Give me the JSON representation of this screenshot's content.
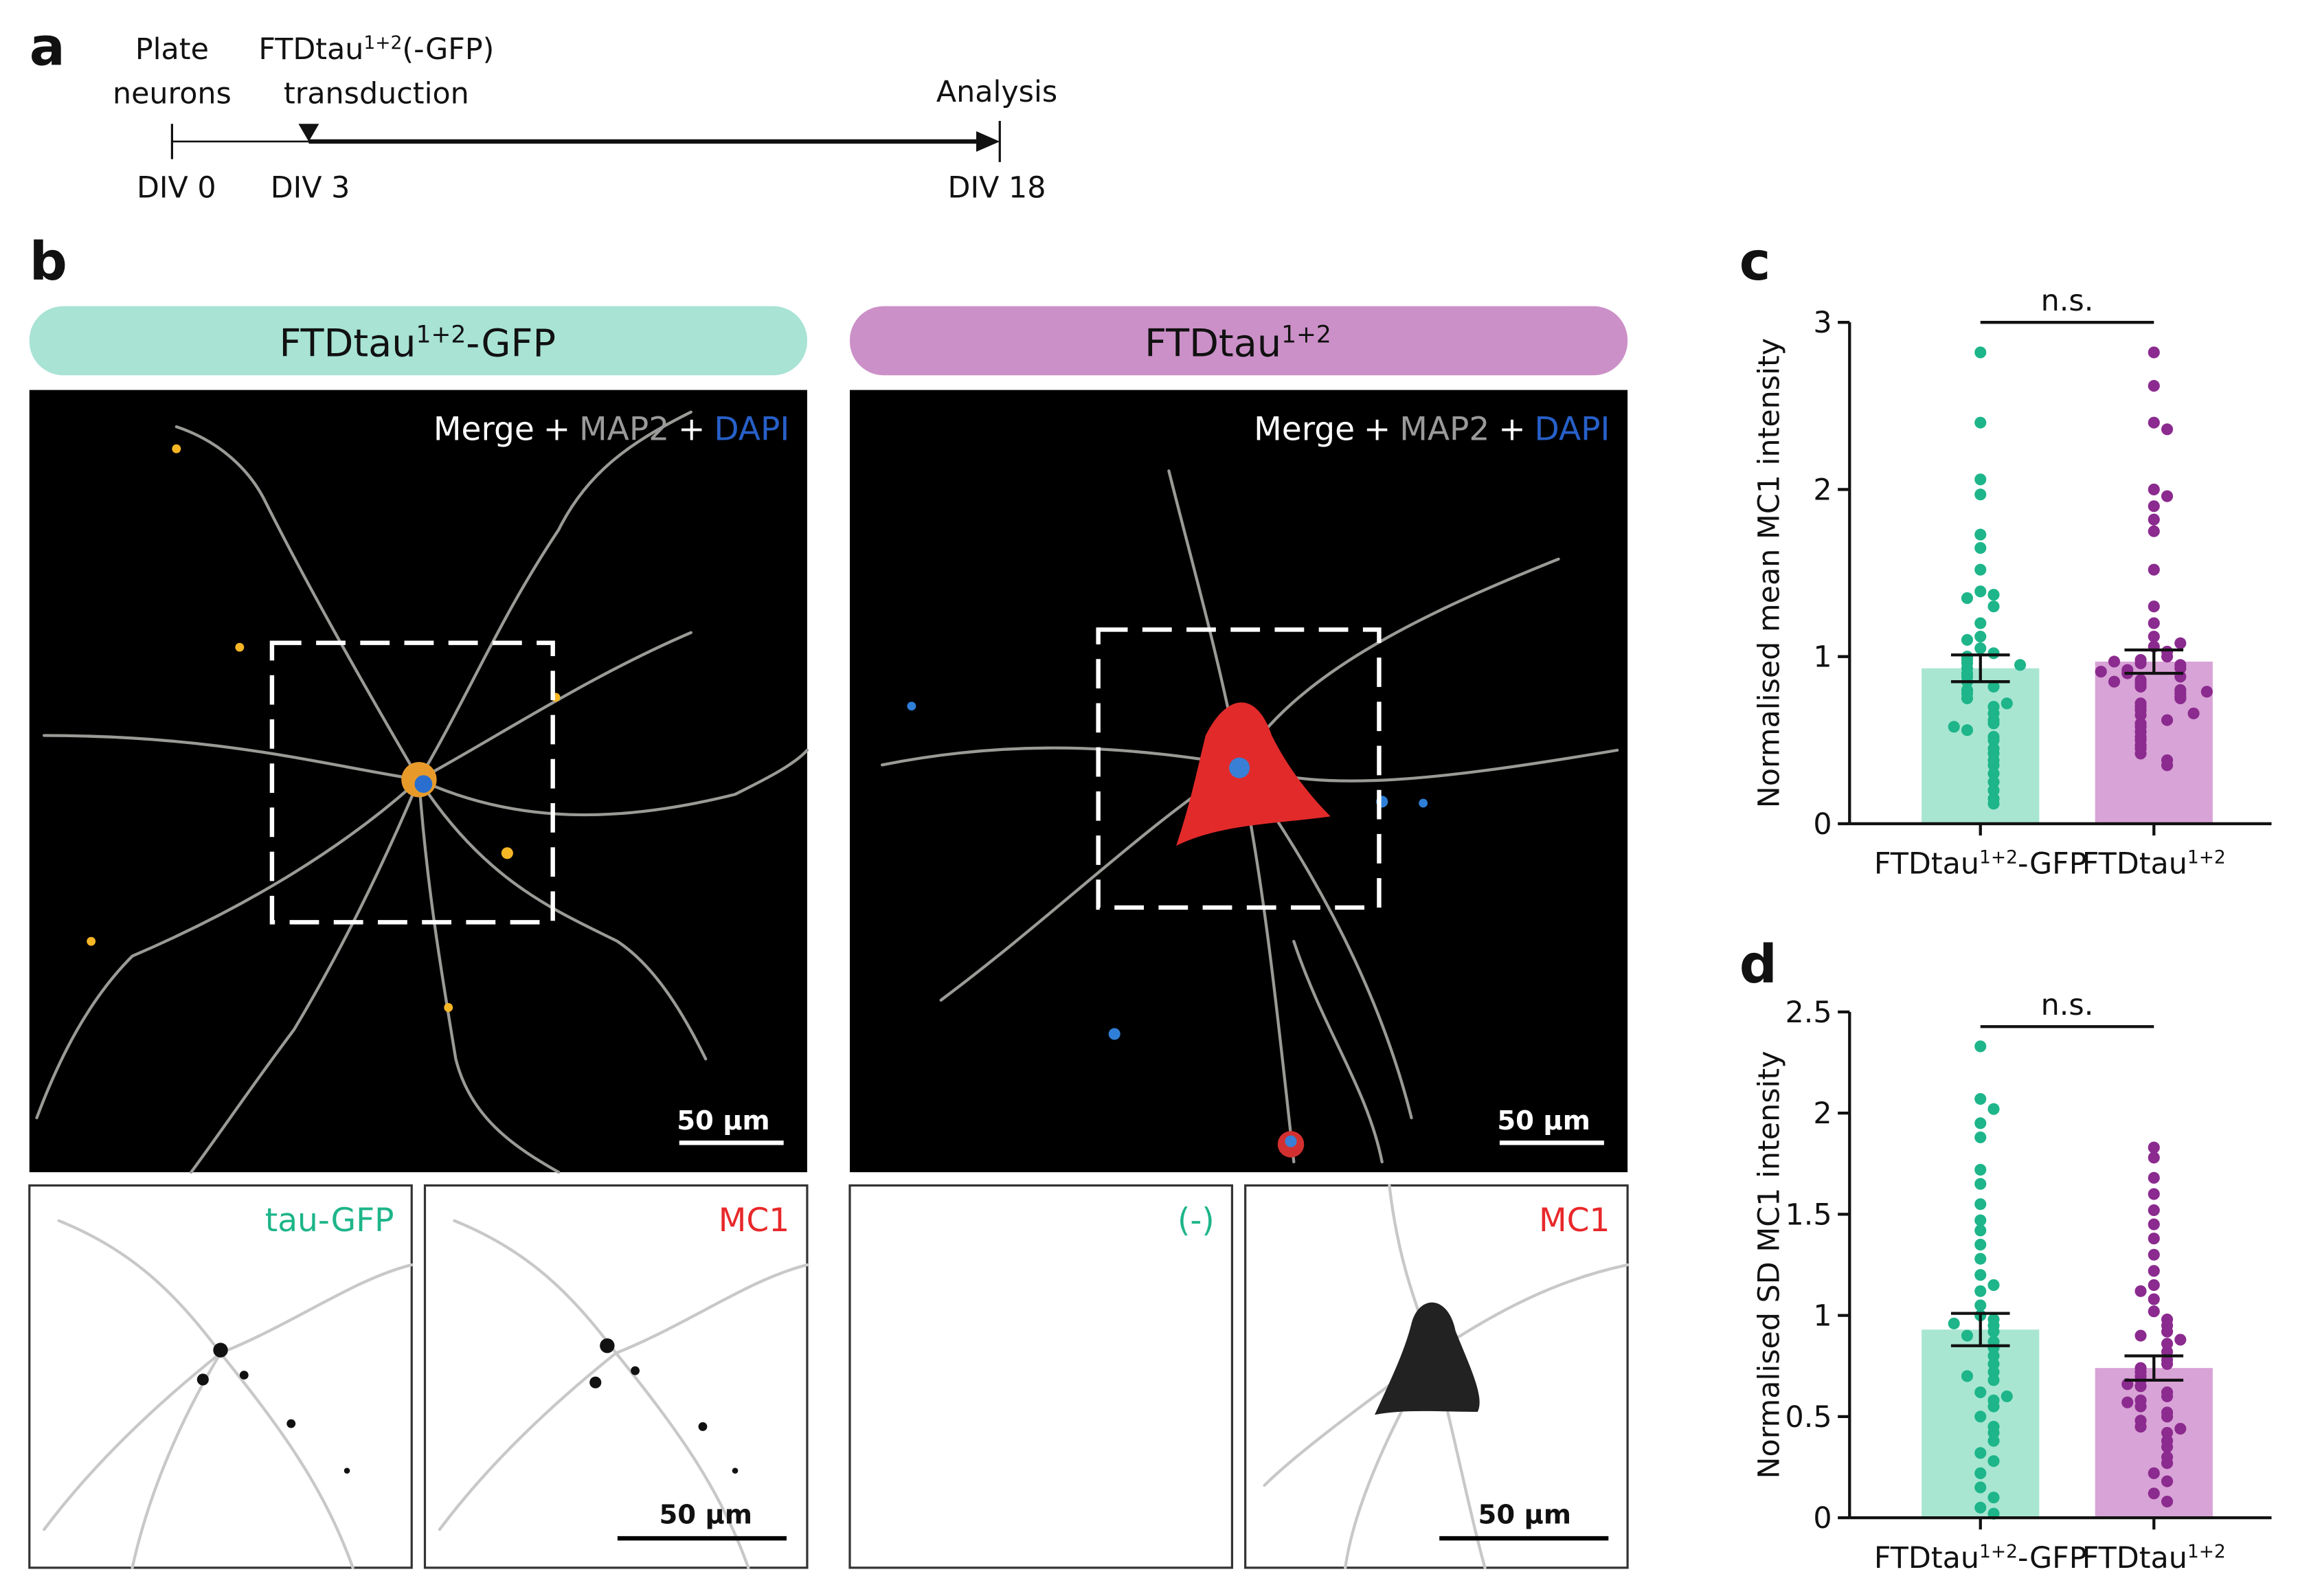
{
  "panel_labels": [
    "a",
    "b",
    "c",
    "d"
  ],
  "timeline": {
    "start_label": [
      "Plate",
      "neurons"
    ],
    "transduction_label": [
      "FTDtau",
      "1+2",
      "(-GFP)"
    ],
    "transduction_label_2": "transduction",
    "end_label": "Analysis",
    "days": [
      "DIV 0",
      "DIV 3",
      "DIV 18"
    ]
  },
  "conditions": [
    {
      "title": [
        "FTDtau",
        "1+2",
        "-GFP"
      ],
      "color": "#a8e3d4",
      "channels": [
        "tau-GFP",
        "MC1"
      ]
    },
    {
      "title": [
        "FTDtau",
        "1+2"
      ],
      "color": "#cc90c8",
      "channels": [
        "(-)",
        "MC1"
      ]
    }
  ],
  "merge_label": [
    "Merge",
    "+",
    "MAP2",
    "+",
    "DAPI"
  ],
  "scale_bar": "50 µm",
  "chart_data": [
    {
      "type": "bar",
      "ylabel": "Normalised mean MC1 intensity",
      "categories": [
        [
          "FTDtau",
          "1+2",
          "-GFP"
        ],
        [
          "FTDtau",
          "1+2"
        ]
      ],
      "values": [
        0.93,
        0.97
      ],
      "errors": [
        0.08,
        0.07
      ],
      "colors": [
        "#a8e6d2",
        "#d8a3d6"
      ],
      "point_colors": [
        "#1db589",
        "#8b2a8f"
      ],
      "points": [
        [
          2.82,
          2.4,
          2.06,
          1.97,
          1.73,
          1.65,
          1.52,
          1.39,
          1.37,
          1.35,
          1.3,
          1.2,
          1.12,
          1.05,
          1.02,
          1.0,
          0.98,
          0.96,
          0.93,
          0.9,
          0.88,
          0.85,
          0.82,
          0.8,
          0.78,
          0.75,
          0.7,
          0.66,
          0.62,
          0.6,
          0.56,
          0.52,
          0.5,
          0.45,
          0.42,
          0.38,
          0.35,
          0.3,
          0.25,
          0.2,
          0.15,
          0.12,
          1.1,
          0.95,
          0.72,
          0.58
        ],
        [
          2.82,
          2.62,
          2.4,
          2.36,
          2.0,
          1.96,
          1.9,
          1.82,
          1.75,
          1.52,
          1.3,
          1.2,
          1.12,
          1.06,
          1.03,
          1.0,
          0.98,
          0.96,
          0.95,
          0.93,
          0.92,
          0.9,
          0.88,
          0.86,
          0.84,
          0.82,
          0.8,
          0.78,
          0.76,
          0.75,
          0.72,
          0.7,
          0.68,
          0.65,
          0.62,
          0.6,
          0.58,
          0.55,
          0.52,
          0.5,
          0.47,
          0.45,
          0.42,
          0.38,
          0.35,
          1.08,
          0.97,
          0.91,
          0.85,
          0.79,
          0.66
        ]
      ],
      "ylim": [
        0,
        3
      ],
      "yticks": [
        0,
        1,
        2,
        3
      ],
      "annotation": "n.s."
    },
    {
      "type": "bar",
      "ylabel": "Normalised SD MC1 intensity",
      "categories": [
        [
          "FTDtau",
          "1+2",
          "-GFP"
        ],
        [
          "FTDtau",
          "1+2"
        ]
      ],
      "values": [
        0.93,
        0.74
      ],
      "errors": [
        0.08,
        0.06
      ],
      "colors": [
        "#a8e6d2",
        "#d8a3d6"
      ],
      "point_colors": [
        "#1db589",
        "#8b2a8f"
      ],
      "points": [
        [
          2.33,
          2.07,
          2.02,
          1.95,
          1.88,
          1.72,
          1.65,
          1.55,
          1.47,
          1.42,
          1.35,
          1.28,
          1.2,
          1.12,
          1.05,
          1.0,
          0.98,
          0.95,
          0.92,
          0.9,
          0.87,
          0.84,
          0.8,
          0.76,
          0.72,
          0.68,
          0.62,
          0.58,
          0.55,
          0.5,
          0.45,
          0.42,
          0.38,
          0.32,
          0.28,
          0.22,
          0.15,
          0.1,
          0.05,
          0.02,
          1.15,
          0.96,
          0.7,
          0.6
        ],
        [
          1.83,
          1.78,
          1.68,
          1.6,
          1.52,
          1.45,
          1.38,
          1.3,
          1.22,
          1.15,
          1.08,
          1.02,
          0.98,
          0.95,
          0.92,
          0.9,
          0.86,
          0.82,
          0.78,
          0.76,
          0.74,
          0.72,
          0.7,
          0.68,
          0.65,
          0.62,
          0.6,
          0.58,
          0.55,
          0.52,
          0.5,
          0.48,
          0.45,
          0.42,
          0.38,
          0.35,
          0.3,
          0.27,
          0.22,
          0.18,
          0.12,
          0.08,
          1.12,
          0.88,
          0.66,
          0.57,
          0.44
        ]
      ],
      "ylim": [
        0,
        2.5
      ],
      "yticks": [
        0,
        0.5,
        1,
        1.5,
        2,
        2.5
      ],
      "annotation": "n.s."
    }
  ]
}
